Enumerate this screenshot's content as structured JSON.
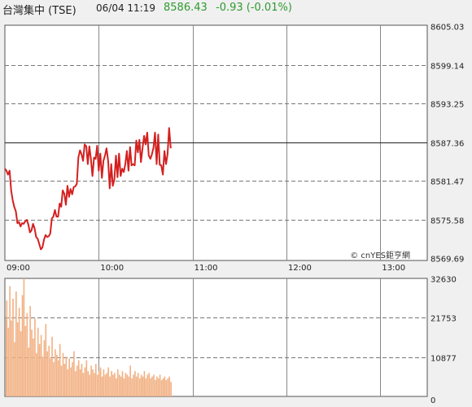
{
  "header": {
    "name": "台灣集中 (TSE)",
    "time": "06/04 11:19",
    "price": "8586.43",
    "change": "-0.93 (-0.01%)",
    "change_color": "#2e9a2e"
  },
  "watermark": "© cnYES鉅亨網",
  "chart_data": [
    {
      "type": "line",
      "title": "",
      "line_color": "#d42020",
      "yticks": [
        "8605.03",
        "8599.14",
        "8593.25",
        "8587.36",
        "8581.47",
        "8575.58",
        "8569.69"
      ],
      "ylim": [
        8569.69,
        8605.03
      ],
      "reference": 8587.36,
      "xticks": [
        "09:00",
        "10:00",
        "11:00",
        "12:00",
        "13:00"
      ],
      "xlim": [
        "09:00",
        "13:30"
      ],
      "series": [
        {
          "values": [
            8583.3,
            8583.0,
            8582.4,
            8583.0,
            8580.0,
            8578.5,
            8577.5,
            8576.8,
            8575.0,
            8575.2,
            8574.5,
            8575.0,
            8574.9,
            8575.3,
            8575.5,
            8574.8,
            8573.6,
            8573.9,
            8574.9,
            8574.2,
            8572.9,
            8572.6,
            8571.8,
            8571.0,
            8571.3,
            8572.5,
            8573.2,
            8572.9,
            8573.0,
            8573.4,
            8575.7,
            8576.0,
            8577.0,
            8576.0,
            8576.0,
            8578.0,
            8577.5,
            8580.0,
            8579.5,
            8577.8,
            8580.7,
            8579.0,
            8580.2,
            8579.4,
            8580.5,
            8580.6,
            8581.0,
            8585.0,
            8586.1,
            8585.5,
            8584.5,
            8587.0,
            8586.7,
            8584.0,
            8586.7,
            8584.8,
            8582.2,
            8585.0,
            8584.8,
            8586.8,
            8583.0,
            8585.6,
            8581.9,
            8584.5,
            8585.3,
            8586.4,
            8584.5,
            8580.3,
            8584.0,
            8580.7,
            8581.7,
            8585.3,
            8582.0,
            8585.6,
            8582.2,
            8583.3,
            8582.8,
            8584.0,
            8586.0,
            8583.0,
            8586.6,
            8583.8,
            8584.0,
            8583.8,
            8587.6,
            8585.8,
            8587.7,
            8584.3,
            8586.5,
            8588.3,
            8587.0,
            8588.8,
            8585.3,
            8584.8,
            8585.5,
            8586.5,
            8588.8,
            8584.0,
            8588.5,
            8583.9,
            8583.8,
            8582.4,
            8586.0,
            8584.0,
            8585.5,
            8589.5,
            8586.4
          ]
        }
      ]
    },
    {
      "type": "bar",
      "title": "",
      "bar_color": "#f2b285",
      "yticks": [
        "32630",
        "21753",
        "10877",
        "0"
      ],
      "ylim": [
        0,
        32630
      ],
      "xlim": [
        "09:00",
        "13:30"
      ],
      "values": [
        22000,
        26500,
        19000,
        30500,
        21000,
        27000,
        15000,
        29000,
        20500,
        24500,
        18000,
        28000,
        32630,
        19500,
        23000,
        13500,
        25000,
        18500,
        16000,
        21500,
        12000,
        19000,
        14500,
        17000,
        11000,
        15500,
        20000,
        12500,
        14000,
        10500,
        16500,
        9500,
        13000,
        11500,
        10000,
        14500,
        8500,
        12000,
        9000,
        11000,
        7500,
        10500,
        8000,
        9500,
        12500,
        7000,
        8500,
        10000,
        7500,
        9000,
        6500,
        8000,
        10000,
        7000,
        6000,
        8500,
        7500,
        6500,
        9000,
        6000,
        7000,
        8000,
        5500,
        7500,
        6000,
        6500,
        8000,
        5500,
        7000,
        6000,
        6500,
        5000,
        7500,
        6000,
        5500,
        7000,
        5000,
        6500,
        6000,
        5500,
        8500,
        5000,
        6000,
        7000,
        5500,
        6500,
        5000,
        6000,
        5500,
        7000,
        5000,
        6000,
        6500,
        5000,
        5500,
        6000,
        4500,
        5500,
        5000,
        6000,
        4500,
        5000,
        5500,
        4500,
        5000,
        5500,
        4000
      ]
    }
  ]
}
